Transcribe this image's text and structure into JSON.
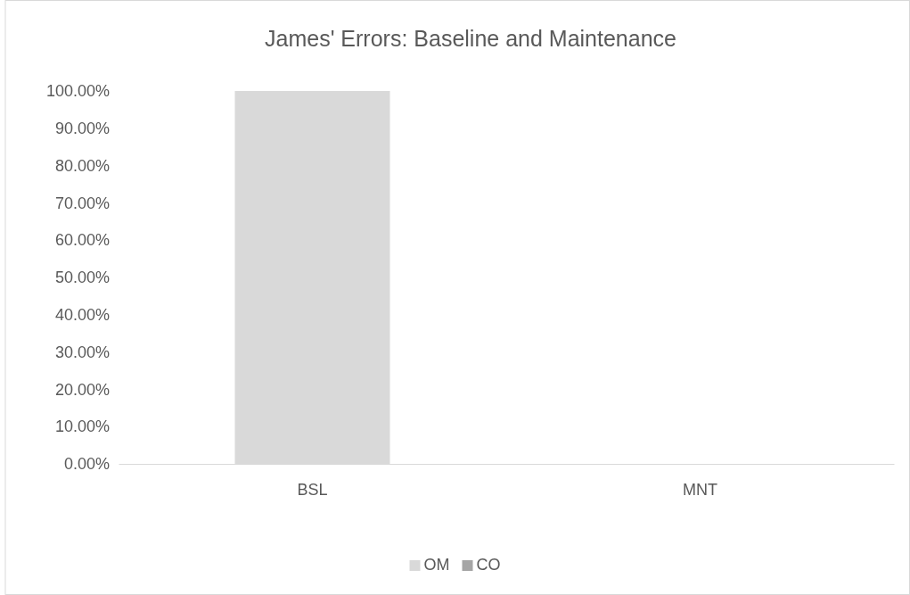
{
  "chart_data": {
    "type": "bar",
    "title": "James' Errors: Baseline and Maintenance",
    "categories": [
      "BSL",
      "MNT"
    ],
    "stacked": true,
    "series": [
      {
        "name": "OM",
        "color": "#d9d9d9",
        "values": [
          100,
          0
        ]
      },
      {
        "name": "CO",
        "color": "#a5a5a5",
        "values": [
          0,
          0
        ]
      }
    ],
    "ylim": [
      0,
      100
    ],
    "yticks": [
      {
        "value": 0,
        "label": "0.00%"
      },
      {
        "value": 10,
        "label": "10.00%"
      },
      {
        "value": 20,
        "label": "20.00%"
      },
      {
        "value": 30,
        "label": "30.00%"
      },
      {
        "value": 40,
        "label": "40.00%"
      },
      {
        "value": 50,
        "label": "50.00%"
      },
      {
        "value": 60,
        "label": "60.00%"
      },
      {
        "value": 70,
        "label": "70.00%"
      },
      {
        "value": 80,
        "label": "80.00%"
      },
      {
        "value": 90,
        "label": "90.00%"
      },
      {
        "value": 100,
        "label": "100.00%"
      }
    ],
    "grid": false,
    "legend": "bottom"
  }
}
